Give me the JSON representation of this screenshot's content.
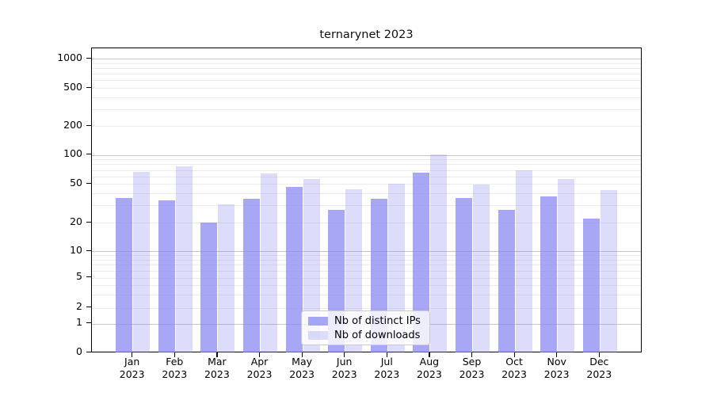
{
  "title": "ternarynet 2023",
  "chart_data": {
    "type": "bar",
    "title": "ternarynet 2023",
    "categories": [
      "Jan 2023",
      "Feb 2023",
      "Mar 2023",
      "Apr 2023",
      "May 2023",
      "Jun 2023",
      "Jul 2023",
      "Aug 2023",
      "Sep 2023",
      "Oct 2023",
      "Nov 2023",
      "Dec 2023"
    ],
    "months": [
      "Jan",
      "Feb",
      "Mar",
      "Apr",
      "May",
      "Jun",
      "Jul",
      "Aug",
      "Sep",
      "Oct",
      "Nov",
      "Dec"
    ],
    "year": "2023",
    "series": [
      {
        "name": "Nb of distinct IPs",
        "color": "rgba(133,133,242,0.72)",
        "values": [
          36,
          34,
          20,
          35,
          47,
          27,
          35,
          66,
          36,
          27,
          37,
          22
        ]
      },
      {
        "name": "Nb of downloads",
        "color": "rgba(133,133,242,0.28)",
        "values": [
          67,
          76,
          31,
          64,
          56,
          44,
          50,
          102,
          49,
          70,
          56,
          43
        ]
      }
    ],
    "yscale": "log",
    "yticks": [
      0,
      1,
      2,
      5,
      10,
      20,
      50,
      100,
      200,
      500,
      1000
    ],
    "ylim": [
      0,
      1280
    ],
    "grid": "horizontal major and minor",
    "legend_position": "lower center"
  },
  "colors": {
    "bar_base": "#8585f2",
    "grid_major": "#c6c6c6",
    "grid_minor": "#ececec",
    "axis": "#000000",
    "legend_border": "#cccccc"
  }
}
